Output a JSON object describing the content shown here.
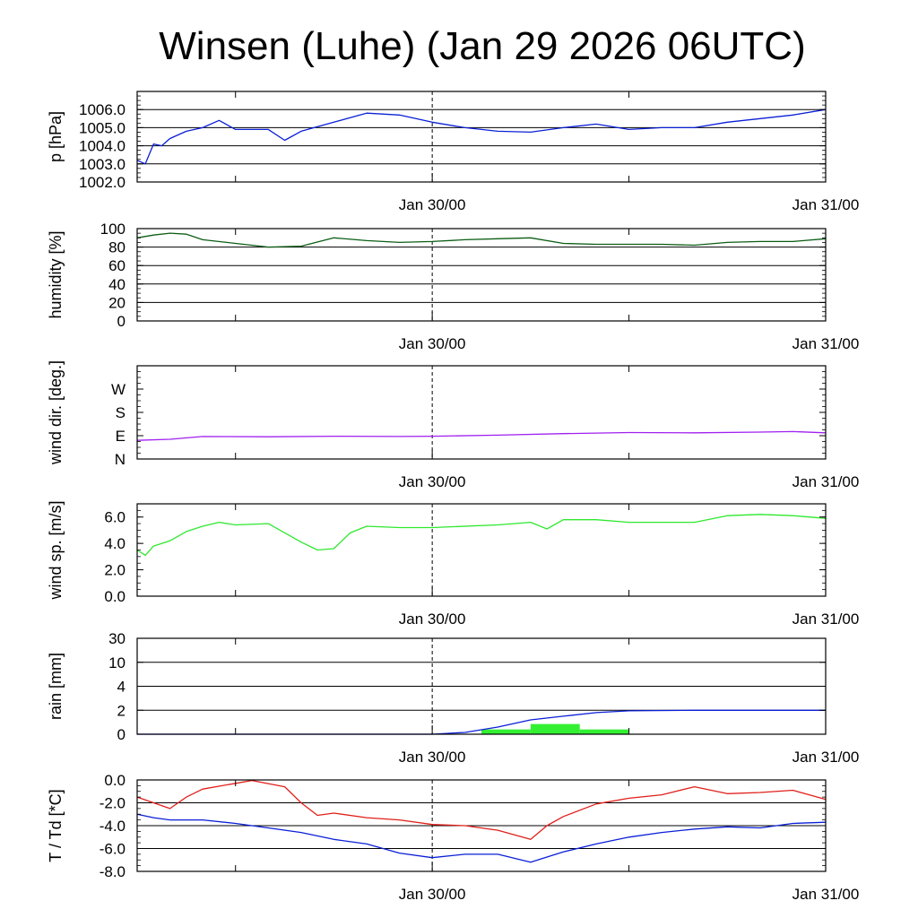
{
  "title": "Winsen (Luhe) (Jan 29 2026 06UTC)",
  "x_axis": {
    "start": "Jan 29 2026 06UTC",
    "end": "Jan 31 2026 00UTC",
    "tick_labels": [
      {
        "label": "Jan 30/00",
        "time": "Jan 30 2026 00UTC"
      },
      {
        "label": "Jan 31/00",
        "time": "Jan 31 2026 00UTC"
      }
    ],
    "minor_ticks": [
      "Jan 29 2026 12UTC",
      "Jan 30 2026 12UTC"
    ],
    "dashed_marker": "Jan 30 2026 00UTC"
  },
  "chart_data": [
    {
      "type": "line",
      "id": "pressure",
      "ylabel": "p [hPa]",
      "ylim": [
        1002.0,
        1007.0
      ],
      "yticks": [
        1002.0,
        1003.0,
        1004.0,
        1005.0,
        1006.0
      ],
      "ytick_labels": [
        "1002.0",
        "1003.0",
        "1004.0",
        "1005.0",
        "1006.0"
      ],
      "grid": true,
      "series": [
        {
          "color": "#0a1fd6",
          "x": [
            "Jan 29 06:00",
            "Jan 29 06:30",
            "Jan 29 07:00",
            "Jan 29 07:30",
            "Jan 29 08:00",
            "Jan 29 09:00",
            "Jan 29 10:00",
            "Jan 29 11:00",
            "Jan 29 12:00",
            "Jan 29 13:00",
            "Jan 29 14:00",
            "Jan 29 15:00",
            "Jan 29 16:00",
            "Jan 29 18:00",
            "Jan 29 20:00",
            "Jan 29 22:00",
            "Jan 30 00:00",
            "Jan 30 02:00",
            "Jan 30 04:00",
            "Jan 30 06:00",
            "Jan 30 08:00",
            "Jan 30 10:00",
            "Jan 30 12:00",
            "Jan 30 14:00",
            "Jan 30 16:00",
            "Jan 30 18:00",
            "Jan 30 20:00",
            "Jan 30 22:00",
            "Jan 31 00:00"
          ],
          "y": [
            1003.2,
            1003.0,
            1004.1,
            1004.0,
            1004.4,
            1004.8,
            1005.0,
            1005.4,
            1004.9,
            1004.9,
            1004.9,
            1004.3,
            1004.8,
            1005.3,
            1005.8,
            1005.7,
            1005.3,
            1005.0,
            1004.8,
            1004.75,
            1005.0,
            1005.2,
            1004.9,
            1005.0,
            1005.0,
            1005.3,
            1005.5,
            1005.7,
            1006.0
          ]
        }
      ]
    },
    {
      "type": "line",
      "id": "humidity",
      "ylabel": "humidity [%]",
      "ylim": [
        0,
        100
      ],
      "yticks": [
        0,
        20,
        40,
        60,
        80,
        100
      ],
      "ytick_labels": [
        "0",
        "20",
        "40",
        "60",
        "80",
        "100"
      ],
      "grid": true,
      "series": [
        {
          "color": "#0b5e14",
          "x": [
            "Jan 29 06:00",
            "Jan 29 07:00",
            "Jan 29 08:00",
            "Jan 29 09:00",
            "Jan 29 10:00",
            "Jan 29 12:00",
            "Jan 29 14:00",
            "Jan 29 16:00",
            "Jan 29 18:00",
            "Jan 29 20:00",
            "Jan 29 22:00",
            "Jan 30 00:00",
            "Jan 30 02:00",
            "Jan 30 04:00",
            "Jan 30 06:00",
            "Jan 30 08:00",
            "Jan 30 10:00",
            "Jan 30 12:00",
            "Jan 30 14:00",
            "Jan 30 16:00",
            "Jan 30 18:00",
            "Jan 30 20:00",
            "Jan 30 22:00",
            "Jan 31 00:00"
          ],
          "y": [
            90,
            93,
            95,
            94,
            88,
            84,
            80,
            81,
            90,
            87,
            85,
            86,
            88,
            89,
            90,
            84,
            83,
            83,
            83,
            82,
            85,
            86,
            86,
            89
          ]
        }
      ]
    },
    {
      "type": "line",
      "id": "wind-direction",
      "ylabel": "wind dir. [deg.]",
      "ylim": [
        0,
        360
      ],
      "yticks": [
        0,
        90,
        180,
        270
      ],
      "ytick_labels": [
        "N",
        "E",
        "S",
        "W"
      ],
      "grid": false,
      "series": [
        {
          "color": "#a020f0",
          "x": [
            "Jan 29 06:00",
            "Jan 29 08:00",
            "Jan 29 10:00",
            "Jan 29 14:00",
            "Jan 29 18:00",
            "Jan 29 22:00",
            "Jan 30 00:00",
            "Jan 30 04:00",
            "Jan 30 08:00",
            "Jan 30 12:00",
            "Jan 30 16:00",
            "Jan 30 20:00",
            "Jan 30 22:00",
            "Jan 31 00:00"
          ],
          "y": [
            72,
            76,
            87,
            86,
            88,
            87,
            88,
            92,
            98,
            102,
            101,
            104,
            106,
            101
          ]
        }
      ]
    },
    {
      "type": "line",
      "id": "wind-speed",
      "ylabel": "wind sp. [m/s]",
      "ylim": [
        0.0,
        7.0
      ],
      "yticks": [
        0.0,
        2.0,
        4.0,
        6.0
      ],
      "ytick_labels": [
        "0.0",
        "2.0",
        "4.0",
        "6.0"
      ],
      "grid": false,
      "series": [
        {
          "color": "#2ee82e",
          "x": [
            "Jan 29 06:00",
            "Jan 29 06:30",
            "Jan 29 07:00",
            "Jan 29 08:00",
            "Jan 29 09:00",
            "Jan 29 10:00",
            "Jan 29 11:00",
            "Jan 29 12:00",
            "Jan 29 14:00",
            "Jan 29 16:00",
            "Jan 29 17:00",
            "Jan 29 18:00",
            "Jan 29 19:00",
            "Jan 29 20:00",
            "Jan 29 22:00",
            "Jan 30 00:00",
            "Jan 30 04:00",
            "Jan 30 06:00",
            "Jan 30 07:00",
            "Jan 30 08:00",
            "Jan 30 10:00",
            "Jan 30 12:00",
            "Jan 30 16:00",
            "Jan 30 18:00",
            "Jan 30 20:00",
            "Jan 30 22:00",
            "Jan 31 00:00"
          ],
          "y": [
            3.5,
            3.1,
            3.8,
            4.2,
            4.9,
            5.3,
            5.6,
            5.4,
            5.5,
            4.1,
            3.5,
            3.6,
            4.8,
            5.3,
            5.2,
            5.2,
            5.4,
            5.6,
            5.1,
            5.8,
            5.8,
            5.6,
            5.6,
            6.1,
            6.2,
            6.1,
            5.9
          ]
        }
      ]
    },
    {
      "type": "bar+line",
      "id": "rain",
      "ylabel": "rain [mm]",
      "ylim": [
        0,
        30
      ],
      "scale": "nonlinear",
      "yticks": [
        0,
        2,
        4,
        10,
        30
      ],
      "ytick_labels": [
        "0",
        "2",
        "4",
        "10",
        "30"
      ],
      "grid": true,
      "bars": {
        "color": "#33f033",
        "intervals": [
          {
            "start": "Jan 30 03:00",
            "end": "Jan 30 06:00",
            "value": 0.4
          },
          {
            "start": "Jan 30 06:00",
            "end": "Jan 30 09:00",
            "value": 0.85
          },
          {
            "start": "Jan 30 09:00",
            "end": "Jan 30 12:00",
            "value": 0.4
          }
        ]
      },
      "series": [
        {
          "color": "#0a1fd6",
          "x": [
            "Jan 29 06:00",
            "Jan 30 00:00",
            "Jan 30 02:00",
            "Jan 30 04:00",
            "Jan 30 06:00",
            "Jan 30 08:00",
            "Jan 30 10:00",
            "Jan 30 12:00",
            "Jan 30 16:00",
            "Jan 31 00:00"
          ],
          "y": [
            0,
            0,
            0.15,
            0.6,
            1.2,
            1.5,
            1.8,
            1.95,
            2.0,
            2.0
          ]
        }
      ]
    },
    {
      "type": "line",
      "id": "temperature-dewpoint",
      "ylabel": "T / Td [*C]",
      "ylim": [
        -8.0,
        0.0
      ],
      "yticks": [
        -8.0,
        -6.0,
        -4.0,
        -2.0,
        0.0
      ],
      "ytick_labels": [
        "-8.0",
        "-6.0",
        "-4.0",
        "-2.0",
        "0.0"
      ],
      "grid": true,
      "series": [
        {
          "color": "#e0201a",
          "x": [
            "Jan 29 06:00",
            "Jan 29 07:00",
            "Jan 29 08:00",
            "Jan 29 09:00",
            "Jan 29 10:00",
            "Jan 29 12:00",
            "Jan 29 13:00",
            "Jan 29 15:00",
            "Jan 29 16:00",
            "Jan 29 17:00",
            "Jan 29 18:00",
            "Jan 29 20:00",
            "Jan 29 22:00",
            "Jan 30 00:00",
            "Jan 30 02:00",
            "Jan 30 04:00",
            "Jan 30 06:00",
            "Jan 30 07:00",
            "Jan 30 08:00",
            "Jan 30 10:00",
            "Jan 30 12:00",
            "Jan 30 14:00",
            "Jan 30 16:00",
            "Jan 30 18:00",
            "Jan 30 20:00",
            "Jan 30 22:00",
            "Jan 31 00:00"
          ],
          "y": [
            -1.5,
            -2.0,
            -2.5,
            -1.5,
            -0.8,
            -0.3,
            -0.05,
            -0.6,
            -2.0,
            -3.1,
            -2.9,
            -3.3,
            -3.5,
            -3.9,
            -4.0,
            -4.4,
            -5.2,
            -4.0,
            -3.2,
            -2.1,
            -1.6,
            -1.3,
            -0.6,
            -1.2,
            -1.1,
            -0.9,
            -1.7
          ]
        },
        {
          "color": "#0a1fd6",
          "x": [
            "Jan 29 06:00",
            "Jan 29 07:00",
            "Jan 29 08:00",
            "Jan 29 10:00",
            "Jan 29 12:00",
            "Jan 29 14:00",
            "Jan 29 16:00",
            "Jan 29 18:00",
            "Jan 29 20:00",
            "Jan 29 22:00",
            "Jan 30 00:00",
            "Jan 30 02:00",
            "Jan 30 04:00",
            "Jan 30 06:00",
            "Jan 30 08:00",
            "Jan 30 10:00",
            "Jan 30 12:00",
            "Jan 30 14:00",
            "Jan 30 16:00",
            "Jan 30 18:00",
            "Jan 30 20:00",
            "Jan 30 22:00",
            "Jan 31 00:00"
          ],
          "y": [
            -3.0,
            -3.3,
            -3.5,
            -3.5,
            -3.8,
            -4.2,
            -4.6,
            -5.2,
            -5.6,
            -6.4,
            -6.8,
            -6.5,
            -6.5,
            -7.2,
            -6.3,
            -5.6,
            -5.0,
            -4.6,
            -4.3,
            -4.1,
            -4.2,
            -3.8,
            -3.7
          ]
        }
      ]
    }
  ]
}
